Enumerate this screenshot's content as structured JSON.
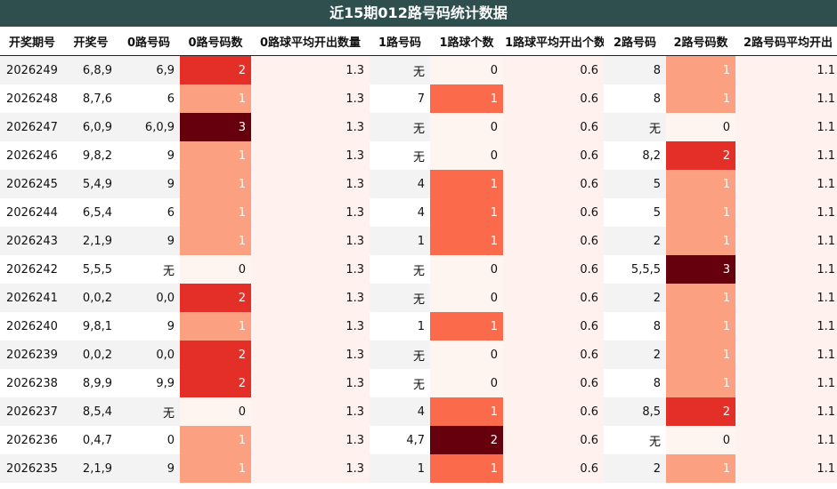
{
  "title": "近15期012路号码统计数据",
  "colors": {
    "title_bg": "#2f4f4f",
    "count_0": "#fff5f0",
    "count_1": "#fca082",
    "count_1_lu1": "#fb6a4a",
    "count_2": "#e32f27",
    "count_2_lu1": "#67000d",
    "count_3": "#67000d",
    "avg_bg": "#fff2ee"
  },
  "headers": [
    "开奖期号",
    "开奖号",
    "0路号码",
    "0路号码数",
    "0路球平均开出数量",
    "1路号码",
    "1路球个数",
    "1路球平均开出个数",
    "2路号码",
    "2路号码数",
    "2路号码平均开出"
  ],
  "rows": [
    [
      "2026249",
      "6,8,9",
      "6,9",
      "2",
      "1.3",
      "无",
      "0",
      "0.6",
      "8",
      "1",
      "1.1"
    ],
    [
      "2026248",
      "8,7,6",
      "6",
      "1",
      "1.3",
      "7",
      "1",
      "0.6",
      "8",
      "1",
      "1.1"
    ],
    [
      "2026247",
      "6,0,9",
      "6,0,9",
      "3",
      "1.3",
      "无",
      "0",
      "0.6",
      "无",
      "0",
      "1.1"
    ],
    [
      "2026246",
      "9,8,2",
      "9",
      "1",
      "1.3",
      "无",
      "0",
      "0.6",
      "8,2",
      "2",
      "1.1"
    ],
    [
      "2026245",
      "5,4,9",
      "9",
      "1",
      "1.3",
      "4",
      "1",
      "0.6",
      "5",
      "1",
      "1.1"
    ],
    [
      "2026244",
      "6,5,4",
      "6",
      "1",
      "1.3",
      "4",
      "1",
      "0.6",
      "5",
      "1",
      "1.1"
    ],
    [
      "2026243",
      "2,1,9",
      "9",
      "1",
      "1.3",
      "1",
      "1",
      "0.6",
      "2",
      "1",
      "1.1"
    ],
    [
      "2026242",
      "5,5,5",
      "无",
      "0",
      "1.3",
      "无",
      "0",
      "0.6",
      "5,5,5",
      "3",
      "1.1"
    ],
    [
      "2026241",
      "0,0,2",
      "0,0",
      "2",
      "1.3",
      "无",
      "0",
      "0.6",
      "2",
      "1",
      "1.1"
    ],
    [
      "2026240",
      "9,8,1",
      "9",
      "1",
      "1.3",
      "1",
      "1",
      "0.6",
      "8",
      "1",
      "1.1"
    ],
    [
      "2026239",
      "0,0,2",
      "0,0",
      "2",
      "1.3",
      "无",
      "0",
      "0.6",
      "2",
      "1",
      "1.1"
    ],
    [
      "2026238",
      "8,9,9",
      "9,9",
      "2",
      "1.3",
      "无",
      "0",
      "0.6",
      "8",
      "1",
      "1.1"
    ],
    [
      "2026237",
      "8,5,4",
      "无",
      "0",
      "1.3",
      "4",
      "1",
      "0.6",
      "8,5",
      "2",
      "1.1"
    ],
    [
      "2026236",
      "0,4,7",
      "0",
      "1",
      "1.3",
      "4,7",
      "2",
      "0.6",
      "无",
      "0",
      "1.1"
    ],
    [
      "2026235",
      "2,1,9",
      "9",
      "1",
      "1.3",
      "1",
      "1",
      "0.6",
      "2",
      "1",
      "1.1"
    ]
  ]
}
